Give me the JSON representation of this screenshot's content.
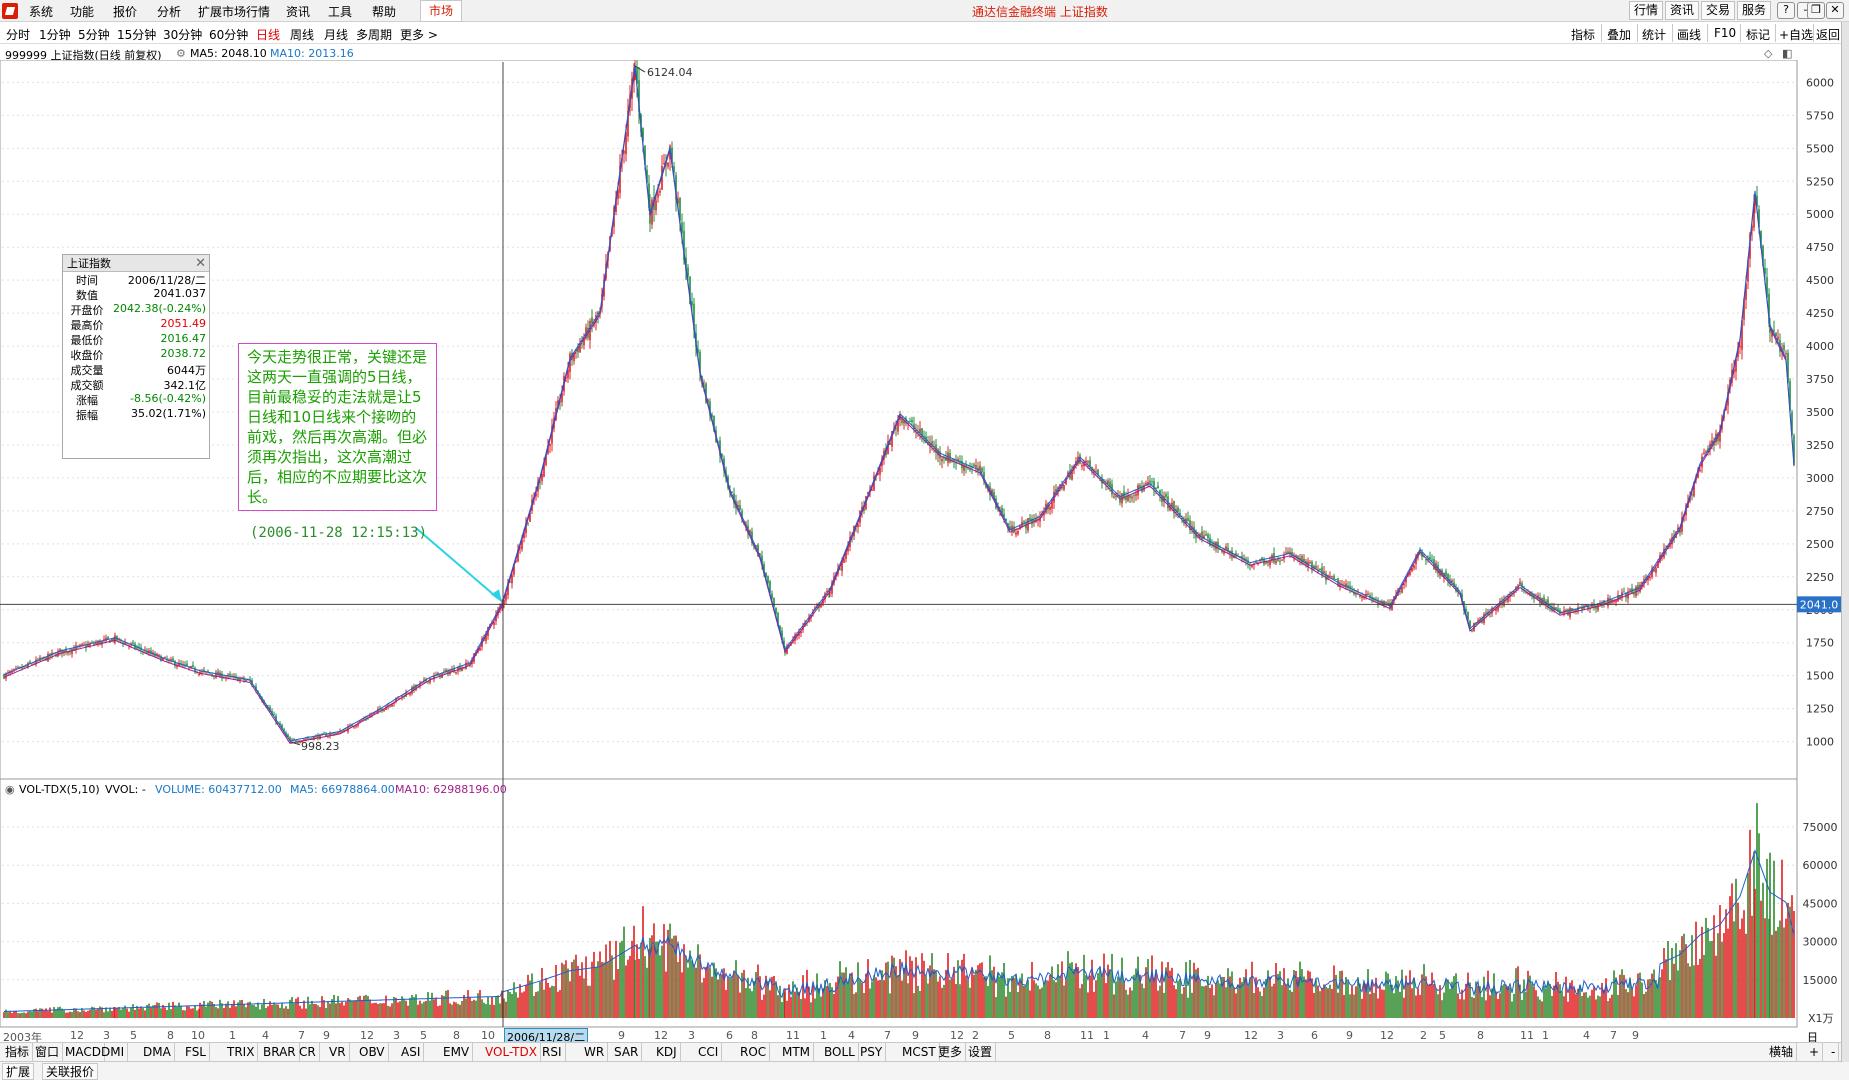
{
  "menu": {
    "items": [
      "系统",
      "功能",
      "报价",
      "分析",
      "扩展市场行情",
      "资讯",
      "工具",
      "帮助"
    ],
    "market_tab": "市场",
    "window_title": "通达信金融终端 上证指数",
    "right_buttons": [
      "行情",
      "资讯",
      "交易",
      "服务"
    ]
  },
  "periods": {
    "items": [
      "分时",
      "1分钟",
      "5分钟",
      "15分钟",
      "30分钟",
      "60分钟",
      "日线",
      "周线",
      "月线",
      "多周期",
      "更多 >"
    ],
    "active": "日线",
    "tools": [
      "指标",
      "叠加",
      "统计",
      "画线",
      "F10",
      "标记",
      "+自选",
      "返回"
    ]
  },
  "info": {
    "code_name": "999999 上证指数(日线 前复权)",
    "ma5": "MA5: 2048.10",
    "ma10": "MA10: 2013.16"
  },
  "price_axis": {
    "ticks": [
      "6000",
      "5750",
      "5500",
      "5250",
      "5000",
      "4750",
      "4500",
      "4250",
      "4000",
      "3750",
      "3500",
      "3250",
      "3000",
      "2750",
      "2500",
      "2250",
      "2000",
      "1750",
      "1500",
      "1250",
      "1000"
    ],
    "current_label": "2041.0",
    "high_label": "6124.04",
    "low_label": "998.23"
  },
  "volume": {
    "title": "VOL-TDX(5,10)",
    "vvol": "VVOL: -",
    "volume": "VOLUME: 60437712.00",
    "ma5": "MA5: 66978864.00",
    "ma10": "MA10: 62988196.00",
    "ticks": [
      "75000",
      "60000",
      "45000",
      "30000",
      "15000"
    ],
    "unit": "X1万"
  },
  "tooltip": {
    "title": "上证指数",
    "rows": [
      {
        "k": "时间",
        "v": "2006/11/28/二"
      },
      {
        "k": "数值",
        "v": "2041.037"
      },
      {
        "k": "开盘价",
        "v": "2042.38(-0.24%)"
      },
      {
        "k": "最高价",
        "v": "2051.49"
      },
      {
        "k": "最低价",
        "v": "2016.47"
      },
      {
        "k": "收盘价",
        "v": "2038.72"
      },
      {
        "k": "成交量",
        "v": "6044万"
      },
      {
        "k": "成交额",
        "v": "342.1亿"
      },
      {
        "k": "涨幅",
        "v": "-8.56(-0.42%)"
      },
      {
        "k": "振幅",
        "v": "35.02(1.71%)"
      }
    ],
    "colors": {
      "down": "#008800",
      "up": "#e00000",
      "plain": "#000000"
    }
  },
  "annotation": {
    "text": "今天走势很正常，关键还是这两天一直强调的5日线，目前最稳妥的走法就是让5日线和10日线来个接吻的前戏，然后再次高潮。但必须再次指出，这次高潮过后，相应的不应期要比这次长。",
    "time": "(2006-11-28 12:15:13)"
  },
  "date_axis": {
    "start": "2003年",
    "selected": "2006/11/28/二",
    "mode": "日线",
    "left_labels": [
      "12",
      "3",
      "5",
      "8",
      "10",
      "1",
      "4",
      "7",
      "9",
      "12",
      "3",
      "5",
      "8",
      "10"
    ],
    "right_labels": [
      "9",
      "12",
      "3",
      "6",
      "8",
      "11",
      "1",
      "4",
      "7",
      "9",
      "12",
      "2",
      "5",
      "8",
      "11",
      "1",
      "4",
      "7",
      "9",
      "12",
      "3",
      "6",
      "9",
      "12",
      "2",
      "5",
      "8",
      "11",
      "1",
      "4",
      "7",
      "9"
    ]
  },
  "indicators": {
    "items": [
      "指标",
      "窗口",
      "MACD",
      "DMI",
      "DMA",
      "FSL",
      "TRIX",
      "BRAR",
      "CR",
      "VR",
      "OBV",
      "ASI",
      "EMV",
      "VOL-TDX",
      "RSI",
      "WR",
      "SAR",
      "KDJ",
      "CCI",
      "ROC",
      "MTM",
      "BOLL",
      "PSY",
      "MCST",
      "更多",
      "设置"
    ],
    "active": "VOL-TDX",
    "right": [
      "横轴",
      "+",
      "-"
    ]
  },
  "bottom": {
    "items": [
      "扩展",
      "关联报价"
    ]
  },
  "chart_data": {
    "type": "line",
    "title": "999999 上证指数(日线 前复权)",
    "x": [
      "2003-01",
      "2004-01",
      "2005-06",
      "2006-11-28",
      "2007-10",
      "2008-11",
      "2009-08",
      "2010-11",
      "2012-01",
      "2013-06",
      "2014-06",
      "2015-06",
      "2015-09"
    ],
    "series": [
      {
        "name": "上证指数",
        "values": [
          1500,
          1780,
          998.23,
          2041.04,
          6124.04,
          1690,
          3480,
          3180,
          2120,
          1850,
          2040,
          5170,
          3100
        ]
      }
    ],
    "ylim": [
      1000,
      6000
    ],
    "volume_ylim": [
      0,
      75000
    ]
  }
}
